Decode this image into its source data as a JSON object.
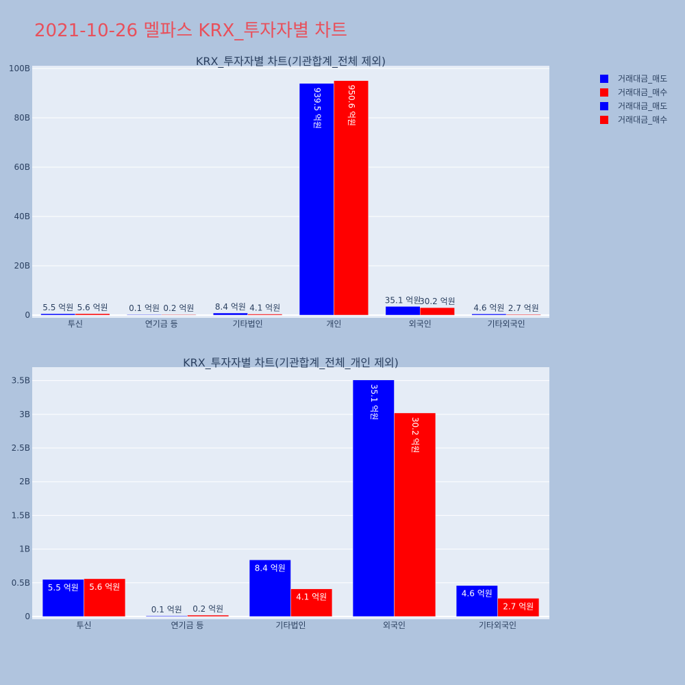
{
  "page_title": "2021-10-26 멜파스 KRX_투자자별 차트",
  "legend": [
    {
      "label": "거래대금_매도",
      "color": "#0000ff"
    },
    {
      "label": "거래대금_매수",
      "color": "#ff0000"
    },
    {
      "label": "거래대금_매도",
      "color": "#0000ff"
    },
    {
      "label": "거래대금_매수",
      "color": "#ff0000"
    }
  ],
  "chart_data": [
    {
      "type": "bar",
      "title": "KRX_투자자별 차트(기관합계_전체 제외)",
      "categories": [
        "투신",
        "연기금 등",
        "기타법인",
        "개인",
        "외국인",
        "기타외국인"
      ],
      "series": [
        {
          "name": "거래대금_매도",
          "color": "#0000ff",
          "values": [
            550000000,
            10000000,
            840000000,
            93950000000,
            3510000000,
            460000000
          ],
          "labels": [
            "5.5 억원",
            "0.1 억원",
            "8.4 억원",
            "939.5 억원",
            "35.1 억원",
            "4.6 억원"
          ]
        },
        {
          "name": "거래대금_매수",
          "color": "#ff0000",
          "values": [
            560000000,
            20000000,
            410000000,
            95060000000,
            3020000000,
            270000000
          ],
          "labels": [
            "5.6 억원",
            "0.2 억원",
            "4.1 억원",
            "950.6 억원",
            "30.2 억원",
            "2.7 억원"
          ]
        }
      ],
      "ylim": [
        0,
        100000000000
      ],
      "yticks": [
        0,
        20000000000,
        40000000000,
        60000000000,
        80000000000,
        100000000000
      ],
      "ytick_labels": [
        "0",
        "20B",
        "40B",
        "60B",
        "80B",
        "100B"
      ],
      "grid": true
    },
    {
      "type": "bar",
      "title": "KRX_투자자별 차트(기관합계_전체_개인 제외)",
      "categories": [
        "투신",
        "연기금 등",
        "기타법인",
        "외국인",
        "기타외국인"
      ],
      "series": [
        {
          "name": "거래대금_매도",
          "color": "#0000ff",
          "values": [
            550000000,
            10000000,
            840000000,
            3510000000,
            460000000
          ],
          "labels": [
            "5.5 억원",
            "0.1 억원",
            "8.4 억원",
            "35.1 억원",
            "4.6 억원"
          ]
        },
        {
          "name": "거래대금_매수",
          "color": "#ff0000",
          "values": [
            560000000,
            20000000,
            410000000,
            3020000000,
            270000000
          ],
          "labels": [
            "5.6 억원",
            "0.2 억원",
            "4.1 억원",
            "30.2 억원",
            "2.7 억원"
          ]
        }
      ],
      "ylim": [
        0,
        3700000000
      ],
      "yticks": [
        0,
        500000000,
        1000000000,
        1500000000,
        2000000000,
        2500000000,
        3000000000,
        3500000000
      ],
      "ytick_labels": [
        "0",
        "0.5B",
        "1B",
        "1.5B",
        "2B",
        "2.5B",
        "3B",
        "3.5B"
      ],
      "grid": true
    }
  ]
}
